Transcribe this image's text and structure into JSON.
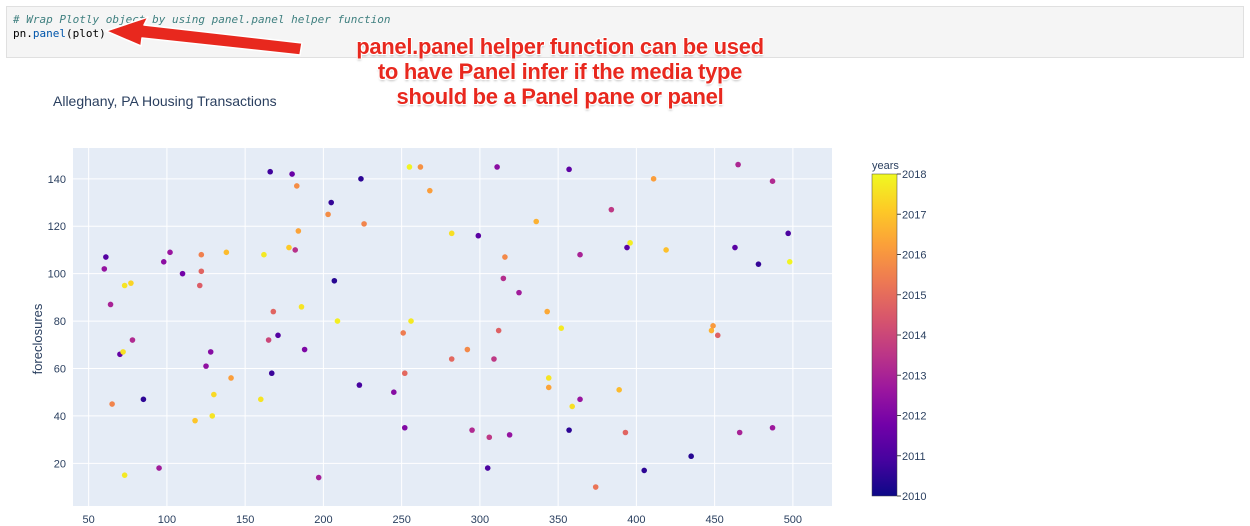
{
  "code_cell": {
    "comment": "# Wrap Plotly object by using panel.panel helper function",
    "line_obj": "pn",
    "line_dot": ".",
    "line_func": "panel",
    "line_open": "(",
    "line_arg": "plot",
    "line_close": ")"
  },
  "annotation": {
    "line1": "panel.panel helper function can be used",
    "line2": "to have Panel infer if the media type",
    "line3": "should be a Panel pane or panel",
    "color": "#e8281e"
  },
  "chart_data": {
    "type": "scatter",
    "title": "Alleghany, PA Housing Transactions",
    "xlabel": "",
    "ylabel": "foreclosures",
    "xlim": [
      40,
      525
    ],
    "ylim": [
      2,
      153
    ],
    "x_ticks": [
      50,
      100,
      150,
      200,
      250,
      300,
      350,
      400,
      450,
      500
    ],
    "y_ticks": [
      20,
      40,
      60,
      80,
      100,
      120,
      140
    ],
    "grid": true,
    "plot_bgcolor": "#e5ecf6",
    "colorscale": "Plasma",
    "colorbar": {
      "title": "years",
      "range": [
        2010,
        2018
      ],
      "ticks": [
        2010,
        2011,
        2012,
        2013,
        2014,
        2015,
        2016,
        2017,
        2018
      ]
    },
    "points": [
      {
        "x": 60,
        "y": 102,
        "year": 2012.5
      },
      {
        "x": 61,
        "y": 107,
        "year": 2011.2
      },
      {
        "x": 64,
        "y": 87,
        "year": 2013.0
      },
      {
        "x": 65,
        "y": 45,
        "year": 2015.6
      },
      {
        "x": 70,
        "y": 66,
        "year": 2011.5
      },
      {
        "x": 72,
        "y": 67,
        "year": 2017.5
      },
      {
        "x": 73,
        "y": 95,
        "year": 2017.6
      },
      {
        "x": 73,
        "y": 15,
        "year": 2017.7
      },
      {
        "x": 77,
        "y": 96,
        "year": 2017.3
      },
      {
        "x": 78,
        "y": 72,
        "year": 2013.2
      },
      {
        "x": 85,
        "y": 47,
        "year": 2010.5
      },
      {
        "x": 95,
        "y": 18,
        "year": 2012.8
      },
      {
        "x": 98,
        "y": 105,
        "year": 2012.3
      },
      {
        "x": 102,
        "y": 109,
        "year": 2012.6
      },
      {
        "x": 110,
        "y": 100,
        "year": 2011.8
      },
      {
        "x": 118,
        "y": 38,
        "year": 2017.0
      },
      {
        "x": 121,
        "y": 95,
        "year": 2014.6
      },
      {
        "x": 122,
        "y": 108,
        "year": 2015.5
      },
      {
        "x": 122,
        "y": 101,
        "year": 2014.8
      },
      {
        "x": 125,
        "y": 61,
        "year": 2012.4
      },
      {
        "x": 128,
        "y": 67,
        "year": 2012.2
      },
      {
        "x": 129,
        "y": 40,
        "year": 2017.6
      },
      {
        "x": 130,
        "y": 49,
        "year": 2017.4
      },
      {
        "x": 138,
        "y": 109,
        "year": 2016.8
      },
      {
        "x": 141,
        "y": 56,
        "year": 2016.2
      },
      {
        "x": 160,
        "y": 47,
        "year": 2017.6
      },
      {
        "x": 162,
        "y": 108,
        "year": 2017.7
      },
      {
        "x": 165,
        "y": 72,
        "year": 2014.0
      },
      {
        "x": 166,
        "y": 143,
        "year": 2010.8
      },
      {
        "x": 167,
        "y": 58,
        "year": 2010.7
      },
      {
        "x": 168,
        "y": 84,
        "year": 2014.8
      },
      {
        "x": 171,
        "y": 74,
        "year": 2011.2
      },
      {
        "x": 178,
        "y": 111,
        "year": 2017.1
      },
      {
        "x": 180,
        "y": 142,
        "year": 2011.6
      },
      {
        "x": 182,
        "y": 110,
        "year": 2013.4
      },
      {
        "x": 183,
        "y": 137,
        "year": 2015.8
      },
      {
        "x": 184,
        "y": 118,
        "year": 2016.3
      },
      {
        "x": 186,
        "y": 86,
        "year": 2017.6
      },
      {
        "x": 188,
        "y": 68,
        "year": 2012.0
      },
      {
        "x": 197,
        "y": 14,
        "year": 2012.9
      },
      {
        "x": 203,
        "y": 125,
        "year": 2015.8
      },
      {
        "x": 205,
        "y": 130,
        "year": 2010.6
      },
      {
        "x": 207,
        "y": 97,
        "year": 2010.4
      },
      {
        "x": 209,
        "y": 80,
        "year": 2017.8
      },
      {
        "x": 223,
        "y": 53,
        "year": 2010.9
      },
      {
        "x": 224,
        "y": 140,
        "year": 2010.5
      },
      {
        "x": 226,
        "y": 121,
        "year": 2015.6
      },
      {
        "x": 245,
        "y": 50,
        "year": 2012.2
      },
      {
        "x": 251,
        "y": 75,
        "year": 2015.4
      },
      {
        "x": 252,
        "y": 58,
        "year": 2014.9
      },
      {
        "x": 252,
        "y": 35,
        "year": 2012.1
      },
      {
        "x": 255,
        "y": 145,
        "year": 2017.9
      },
      {
        "x": 256,
        "y": 80,
        "year": 2017.7
      },
      {
        "x": 262,
        "y": 145,
        "year": 2015.9
      },
      {
        "x": 268,
        "y": 135,
        "year": 2016.2
      },
      {
        "x": 282,
        "y": 117,
        "year": 2017.5
      },
      {
        "x": 282,
        "y": 64,
        "year": 2014.9
      },
      {
        "x": 292,
        "y": 68,
        "year": 2015.7
      },
      {
        "x": 295,
        "y": 34,
        "year": 2013.2
      },
      {
        "x": 299,
        "y": 116,
        "year": 2011.3
      },
      {
        "x": 305,
        "y": 18,
        "year": 2011.0
      },
      {
        "x": 306,
        "y": 31,
        "year": 2013.6
      },
      {
        "x": 309,
        "y": 64,
        "year": 2013.6
      },
      {
        "x": 311,
        "y": 145,
        "year": 2012.3
      },
      {
        "x": 312,
        "y": 76,
        "year": 2014.7
      },
      {
        "x": 315,
        "y": 98,
        "year": 2013.3
      },
      {
        "x": 316,
        "y": 107,
        "year": 2015.7
      },
      {
        "x": 319,
        "y": 32,
        "year": 2012.5
      },
      {
        "x": 325,
        "y": 92,
        "year": 2012.8
      },
      {
        "x": 336,
        "y": 122,
        "year": 2016.6
      },
      {
        "x": 343,
        "y": 84,
        "year": 2016.4
      },
      {
        "x": 344,
        "y": 56,
        "year": 2017.6
      },
      {
        "x": 344,
        "y": 52,
        "year": 2016.3
      },
      {
        "x": 352,
        "y": 77,
        "year": 2017.7
      },
      {
        "x": 357,
        "y": 144,
        "year": 2011.4
      },
      {
        "x": 357,
        "y": 34,
        "year": 2010.5
      },
      {
        "x": 359,
        "y": 44,
        "year": 2017.5
      },
      {
        "x": 364,
        "y": 108,
        "year": 2013.0
      },
      {
        "x": 364,
        "y": 47,
        "year": 2012.6
      },
      {
        "x": 374,
        "y": 10,
        "year": 2015.2
      },
      {
        "x": 384,
        "y": 127,
        "year": 2013.6
      },
      {
        "x": 389,
        "y": 51,
        "year": 2016.8
      },
      {
        "x": 393,
        "y": 33,
        "year": 2014.8
      },
      {
        "x": 394,
        "y": 111,
        "year": 2011.3
      },
      {
        "x": 396,
        "y": 113,
        "year": 2017.8
      },
      {
        "x": 405,
        "y": 17,
        "year": 2010.5
      },
      {
        "x": 411,
        "y": 140,
        "year": 2016.2
      },
      {
        "x": 419,
        "y": 110,
        "year": 2016.9
      },
      {
        "x": 435,
        "y": 23,
        "year": 2010.4
      },
      {
        "x": 448,
        "y": 76,
        "year": 2016.6
      },
      {
        "x": 449,
        "y": 78,
        "year": 2016.1
      },
      {
        "x": 452,
        "y": 74,
        "year": 2014.7
      },
      {
        "x": 463,
        "y": 111,
        "year": 2011.3
      },
      {
        "x": 465,
        "y": 146,
        "year": 2013.1
      },
      {
        "x": 466,
        "y": 33,
        "year": 2013.0
      },
      {
        "x": 478,
        "y": 104,
        "year": 2010.6
      },
      {
        "x": 487,
        "y": 139,
        "year": 2013.2
      },
      {
        "x": 487,
        "y": 35,
        "year": 2012.7
      },
      {
        "x": 497,
        "y": 117,
        "year": 2011.0
      },
      {
        "x": 498,
        "y": 105,
        "year": 2017.9
      }
    ]
  }
}
